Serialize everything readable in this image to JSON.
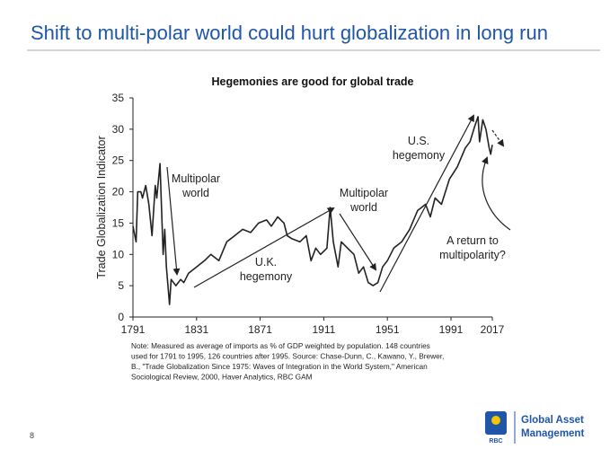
{
  "slide": {
    "title": "Shift to multi-polar world could hurt globalization in long run",
    "note": [
      "Note: Measured as average of imports as % of GDP weighted by population. 148 countries",
      "used for 1791 to 1995, 126 countries after 1995. Source: Chase-Dunn, C., Kawano, Y., Brewer,",
      "B., \"Trade Globalization Since 1975: Waves of Integration in the World System,\" American",
      "Sociological Review, 2000, Haver Analytics, RBC GAM"
    ],
    "page_number": "8",
    "logo_mark": "RBC",
    "logo_text": [
      "Global Asset",
      "Management"
    ]
  },
  "chart_data": {
    "type": "line",
    "title": "Hegemonies are good for global trade",
    "y_label": "Trade Globalization Indicator",
    "color": "#222222",
    "x": [
      1791,
      1793,
      1794,
      1796,
      1797,
      1799,
      1801,
      1803,
      1805,
      1806,
      1808,
      1809,
      1810,
      1811,
      1812,
      1814,
      1815,
      1818,
      1821,
      1823,
      1826,
      1831,
      1836,
      1840,
      1845,
      1850,
      1855,
      1860,
      1865,
      1870,
      1875,
      1878,
      1882,
      1886,
      1888,
      1891,
      1896,
      1900,
      1903,
      1906,
      1909,
      1913,
      1915,
      1917,
      1920,
      1922,
      1926,
      1930,
      1933,
      1936,
      1939,
      1942,
      1945,
      1948,
      1951,
      1955,
      1960,
      1965,
      1970,
      1975,
      1978,
      1981,
      1985,
      1990,
      1995,
      2000,
      2003,
      2006,
      2008,
      2009,
      2011,
      2013,
      2015,
      2016,
      2017
    ],
    "values": [
      14.5,
      12,
      20,
      20,
      19,
      21,
      18,
      13,
      21,
      19,
      24.5,
      17,
      10,
      14,
      8,
      2,
      6,
      5,
      6,
      5.5,
      7,
      8,
      9,
      10,
      9,
      12,
      13,
      14,
      13.5,
      15,
      15.5,
      14.5,
      16,
      15,
      13,
      12.5,
      12,
      13,
      9,
      11,
      10,
      11,
      17.5,
      12,
      8,
      12,
      11,
      10,
      7,
      8,
      5.5,
      5,
      5.5,
      8,
      9,
      11,
      12,
      14,
      17,
      18,
      16,
      19,
      18,
      22,
      24,
      27,
      28,
      30.5,
      32,
      28,
      31.5,
      30,
      27,
      26,
      27.5
    ],
    "xlim": [
      1791,
      2017
    ],
    "xticks": [
      1791,
      1831,
      1871,
      1911,
      1951,
      1991,
      2017
    ],
    "ylim": [
      0,
      35
    ],
    "yticks": [
      0,
      5,
      10,
      15,
      20,
      25,
      30,
      35
    ],
    "annotations": [
      {
        "lines": [
          "Multipolar",
          "world"
        ]
      },
      {
        "lines": [
          "U.K.",
          "hegemony"
        ]
      },
      {
        "lines": [
          "Multipolar",
          "world"
        ]
      },
      {
        "lines": [
          "U.S.",
          "hegemony"
        ]
      },
      {
        "lines": [
          "A return to",
          "multipolarity?"
        ]
      }
    ]
  }
}
